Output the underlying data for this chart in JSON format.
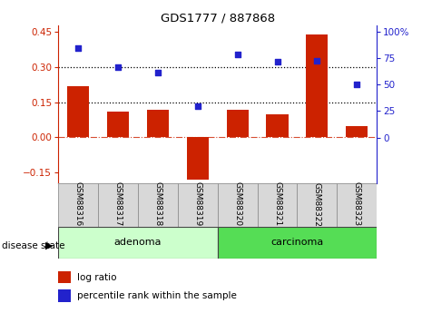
{
  "title": "GDS1777 / 887868",
  "samples": [
    "GSM88316",
    "GSM88317",
    "GSM88318",
    "GSM88319",
    "GSM88320",
    "GSM88321",
    "GSM88322",
    "GSM88323"
  ],
  "log_ratio": [
    0.22,
    0.11,
    0.12,
    -0.18,
    0.12,
    0.1,
    0.44,
    0.05
  ],
  "percentile_rank": [
    85,
    67,
    62,
    30,
    79,
    72,
    73,
    50
  ],
  "bar_color": "#cc2200",
  "dot_color": "#2222cc",
  "ylim_left": [
    -0.195,
    0.48
  ],
  "ylim_right": [
    0,
    106.67
  ],
  "yticks_left": [
    -0.15,
    0.0,
    0.15,
    0.3,
    0.45
  ],
  "yticks_right": [
    0,
    25,
    50,
    75,
    100
  ],
  "hlines": [
    0.15,
    0.3
  ],
  "groups": [
    {
      "label": "adenoma",
      "start": 0,
      "end": 3,
      "color": "#ccffcc"
    },
    {
      "label": "carcinoma",
      "start": 4,
      "end": 7,
      "color": "#55dd55"
    }
  ],
  "disease_state_label": "disease state",
  "legend_items": [
    {
      "label": "log ratio",
      "color": "#cc2200"
    },
    {
      "label": "percentile rank within the sample",
      "color": "#2222cc"
    }
  ],
  "bg_color": "#ffffff"
}
